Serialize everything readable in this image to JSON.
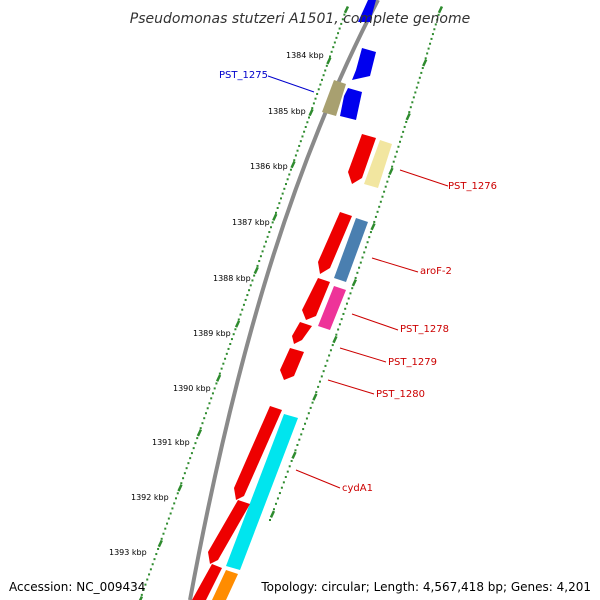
{
  "title": "Pseudomonas stutzeri A1501, complete genome",
  "colors": {
    "backbone": "#8a8a8a",
    "tick": "#2e8b2e",
    "forward": "#0000ee",
    "reverse": "#ee0000",
    "label_blue": "#0000cc",
    "label_red": "#cc0000"
  },
  "ticks": [
    {
      "label": "1384 kbp"
    },
    {
      "label": "1385 kbp"
    },
    {
      "label": "1386 kbp"
    },
    {
      "label": "1387 kbp"
    },
    {
      "label": "1388 kbp"
    },
    {
      "label": "1389 kbp"
    },
    {
      "label": "1390 kbp"
    },
    {
      "label": "1391 kbp"
    },
    {
      "label": "1392 kbp"
    },
    {
      "label": "1393 kbp"
    }
  ],
  "gene_labels": [
    {
      "name": "PST_1275",
      "color": "#0000cc"
    },
    {
      "name": "PST_1276",
      "color": "#cc0000"
    },
    {
      "name": "aroF-2",
      "color": "#cc0000"
    },
    {
      "name": "PST_1278",
      "color": "#cc0000"
    },
    {
      "name": "PST_1279",
      "color": "#cc0000"
    },
    {
      "name": "PST_1280",
      "color": "#cc0000"
    },
    {
      "name": "cydA1",
      "color": "#cc0000"
    }
  ],
  "footer": {
    "accession": "Accession: NC_009434",
    "topology": "Topology: circular; Length: 4,567,418 bp; Genes: 4,201"
  }
}
